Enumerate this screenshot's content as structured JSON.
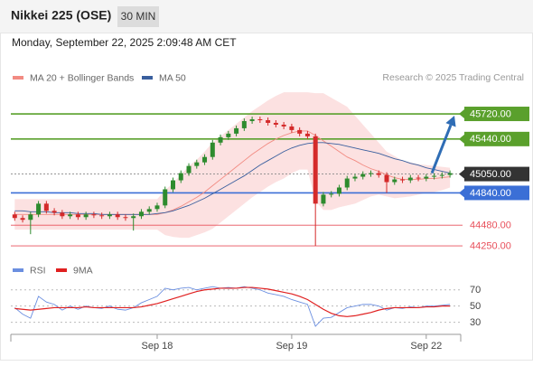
{
  "header": {
    "title": "Nikkei 225 (OSE)",
    "interval": "30 MIN",
    "timestamp": "Monday, September 22, 2025 2:09:48 AM CET"
  },
  "chart_data": [
    {
      "type": "candlestick",
      "credit": "Research © 2025 Trading Central",
      "categories": [
        null,
        null,
        null,
        null,
        null,
        null,
        null,
        null,
        null,
        null,
        null,
        null,
        null,
        null,
        null,
        null,
        null,
        null,
        "Sep 18",
        null,
        null,
        null,
        null,
        null,
        null,
        null,
        null,
        null,
        null,
        null,
        null,
        null,
        null,
        null,
        null,
        "Sep 19",
        null,
        null,
        null,
        null,
        null,
        null,
        null,
        null,
        null,
        null,
        null,
        null,
        null,
        null,
        null,
        null,
        "Sep 22",
        null,
        null,
        null
      ],
      "open": [
        44600,
        44560,
        44540,
        44600,
        44720,
        44640,
        44620,
        44580,
        44600,
        44570,
        44600,
        44590,
        44580,
        44600,
        44570,
        44560,
        44580,
        44630,
        44660,
        44700,
        44880,
        44980,
        45060,
        45140,
        45180,
        45240,
        45400,
        45460,
        45500,
        45560,
        45640,
        45660,
        45650,
        45620,
        45600,
        45580,
        45540,
        45500,
        45470,
        44720,
        44820,
        44830,
        44900,
        45000,
        45020,
        45050,
        45060,
        45040,
        44960,
        44990,
        44980,
        45010,
        45000,
        45020,
        45030,
        45040
      ],
      "high": [
        44630,
        44590,
        44630,
        44750,
        44750,
        44670,
        44650,
        44630,
        44630,
        44630,
        44630,
        44620,
        44630,
        44630,
        44600,
        44610,
        44660,
        44690,
        44730,
        44910,
        45010,
        45090,
        45170,
        45210,
        45270,
        45430,
        45490,
        45530,
        45590,
        45670,
        45690,
        45690,
        45680,
        45650,
        45630,
        45610,
        45570,
        45530,
        45500,
        44850,
        44860,
        44930,
        45030,
        45050,
        45080,
        45090,
        45090,
        45070,
        45020,
        45020,
        45040,
        45040,
        45050,
        45060,
        45070,
        45090
      ],
      "low": [
        44530,
        44510,
        44380,
        44570,
        44610,
        44590,
        44550,
        44550,
        44540,
        44540,
        44560,
        44550,
        44550,
        44540,
        44530,
        44420,
        44550,
        44600,
        44630,
        44670,
        44850,
        44950,
        45030,
        45110,
        45150,
        45210,
        45370,
        45430,
        45470,
        45530,
        45610,
        45620,
        45590,
        45570,
        45550,
        45510,
        45470,
        45440,
        44250,
        44690,
        44790,
        44800,
        44870,
        44970,
        44990,
        45020,
        45010,
        44840,
        44930,
        44950,
        44950,
        44970,
        44970,
        44990,
        45000,
        45010
      ],
      "close": [
        44560,
        44540,
        44600,
        44720,
        44640,
        44620,
        44580,
        44600,
        44570,
        44600,
        44590,
        44580,
        44600,
        44570,
        44560,
        44580,
        44630,
        44660,
        44700,
        44880,
        44980,
        45060,
        45140,
        45180,
        45240,
        45400,
        45460,
        45500,
        45560,
        45640,
        45660,
        45650,
        45620,
        45600,
        45580,
        45540,
        45500,
        45470,
        44720,
        44820,
        44830,
        44900,
        45000,
        45020,
        45050,
        45060,
        45040,
        44960,
        44990,
        44980,
        45010,
        45000,
        45020,
        45030,
        45040,
        45060
      ],
      "up_color": "#2e8b2e",
      "down_color": "#d42a2a",
      "series": [
        {
          "name": "MA 20 + Bollinger Bands",
          "color": "#f28b82",
          "values": [
            44600,
            44600,
            44600,
            44600,
            44600,
            44600,
            44600,
            44600,
            44600,
            44600,
            44600,
            44600,
            44600,
            44600,
            44600,
            44600,
            44600,
            44600,
            44600,
            44620,
            44650,
            44690,
            44740,
            44790,
            44850,
            44920,
            44990,
            45060,
            45130,
            45200,
            45270,
            45330,
            45390,
            45440,
            45480,
            45510,
            45530,
            45530,
            45480,
            45420,
            45360,
            45300,
            45240,
            45200,
            45150,
            45110,
            45080,
            45040,
            45010,
            44990,
            44990,
            44990,
            45000,
            45000,
            45010,
            45020
          ]
        },
        {
          "name": "MA 50",
          "color": "#3a5f9e",
          "values": [
            44640,
            44640,
            44630,
            44630,
            44630,
            44620,
            44620,
            44620,
            44610,
            44610,
            44610,
            44600,
            44600,
            44600,
            44600,
            44600,
            44600,
            44600,
            44610,
            44620,
            44640,
            44670,
            44700,
            44740,
            44780,
            44830,
            44880,
            44930,
            44980,
            45030,
            45090,
            45150,
            45200,
            45250,
            45300,
            45340,
            45370,
            45390,
            45400,
            45400,
            45390,
            45380,
            45360,
            45340,
            45320,
            45300,
            45280,
            45250,
            45220,
            45200,
            45170,
            45150,
            45120,
            45100,
            45080,
            45060
          ]
        }
      ],
      "band": {
        "color": "#fbdcdc",
        "upper": [
          44770,
          44770,
          44770,
          44770,
          44770,
          44770,
          44770,
          44770,
          44770,
          44770,
          44770,
          44770,
          44770,
          44770,
          44770,
          44770,
          44770,
          44770,
          44770,
          44870,
          44950,
          45040,
          45140,
          45210,
          45300,
          45400,
          45470,
          45540,
          45610,
          45680,
          45750,
          45810,
          45870,
          45920,
          45960,
          45960,
          45960,
          45960,
          45950,
          45950,
          45900,
          45850,
          45800,
          45700,
          45600,
          45500,
          45400,
          45300,
          45250,
          45200,
          45180,
          45160,
          45150,
          45140,
          45130,
          45120
        ],
        "lower": [
          44430,
          44430,
          44430,
          44430,
          44430,
          44430,
          44430,
          44430,
          44430,
          44430,
          44430,
          44430,
          44430,
          44430,
          44430,
          44430,
          44430,
          44430,
          44430,
          44370,
          44350,
          44340,
          44340,
          44370,
          44400,
          44440,
          44510,
          44580,
          44650,
          44720,
          44790,
          44850,
          44910,
          44960,
          45000,
          45060,
          45100,
          45100,
          44750,
          44650,
          44650,
          44680,
          44700,
          44720,
          44760,
          44800,
          44820,
          44800,
          44780,
          44790,
          44800,
          44820,
          44840,
          44850,
          44870,
          44900
        ]
      },
      "levels": [
        {
          "value": 45720,
          "label": "45720.00",
          "color": "#5aa02c",
          "line": "solid",
          "label_style": "box"
        },
        {
          "value": 45440,
          "label": "45440.00",
          "color": "#5aa02c",
          "line": "solid",
          "label_style": "box"
        },
        {
          "value": 45050,
          "label": "45050.00",
          "color": "#333333",
          "line": "dotted",
          "label_style": "box"
        },
        {
          "value": 44840,
          "label": "44840.00",
          "color": "#3b6fd6",
          "line": "solid",
          "label_style": "box"
        },
        {
          "value": 44480,
          "label": "44480.00",
          "color": "#e8505b",
          "line": "thin",
          "label_style": "text"
        },
        {
          "value": 44250,
          "label": "44250.00",
          "color": "#e8505b",
          "line": "thin",
          "label_style": "text"
        }
      ],
      "forecast_color": "#2f6db5",
      "ylim": [
        44170,
        45982
      ]
    },
    {
      "type": "line",
      "series": [
        {
          "name": "RSI",
          "color": "#6b8fe0",
          "values": [
            48,
            40,
            35,
            62,
            55,
            52,
            45,
            50,
            46,
            50,
            48,
            47,
            50,
            46,
            45,
            48,
            54,
            58,
            62,
            72,
            70,
            72,
            73,
            70,
            72,
            74,
            72,
            73,
            72,
            74,
            72,
            70,
            66,
            64,
            62,
            58,
            55,
            52,
            25,
            35,
            36,
            42,
            48,
            50,
            52,
            52,
            50,
            45,
            48,
            47,
            49,
            48,
            50,
            50,
            51,
            52
          ]
        },
        {
          "name": "9MA",
          "color": "#e02020",
          "values": [
            47,
            46,
            45,
            46,
            47,
            48,
            48,
            48,
            48,
            49,
            48,
            48,
            48,
            48,
            48,
            48,
            49,
            51,
            53,
            56,
            59,
            62,
            65,
            68,
            70,
            71,
            72,
            72,
            72,
            73,
            73,
            72,
            71,
            69,
            67,
            65,
            62,
            58,
            52,
            46,
            41,
            38,
            37,
            38,
            40,
            42,
            45,
            47,
            48,
            48,
            48,
            48,
            49,
            49,
            50,
            50
          ]
        }
      ],
      "ylim": [
        15,
        82
      ],
      "yticks": [
        30,
        50,
        70
      ],
      "grid": true
    }
  ]
}
